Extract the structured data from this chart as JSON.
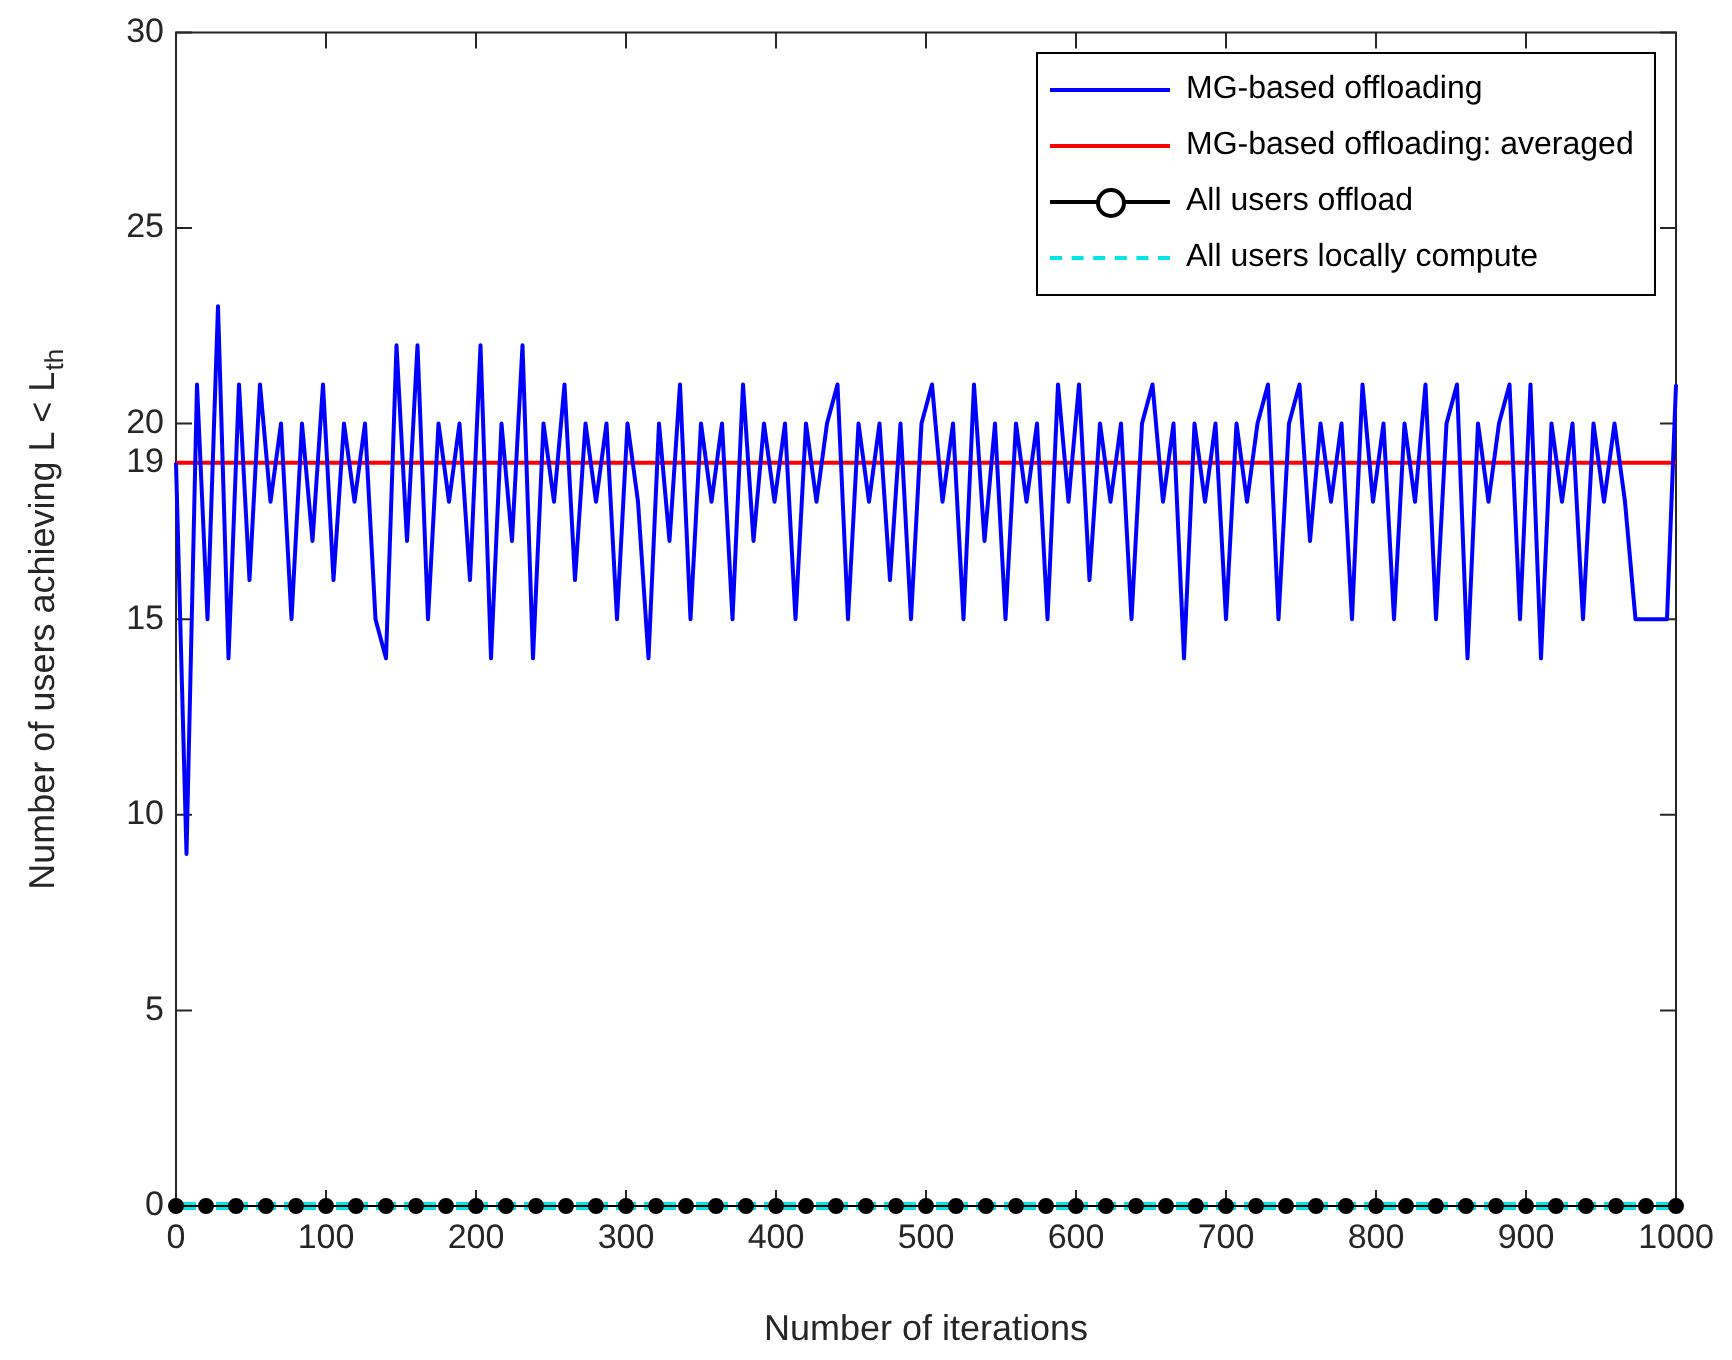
{
  "chart_data": {
    "type": "line",
    "xlabel": "Number of iterations",
    "ylabel": "Number of users achieving L < L$_{th}$",
    "xlim": [
      0,
      1000
    ],
    "xticks": [
      0,
      100,
      200,
      300,
      400,
      500,
      600,
      700,
      800,
      900,
      1000
    ],
    "ylim": [
      0,
      30
    ],
    "yticks": [
      0,
      5,
      10,
      15,
      19,
      20,
      25,
      30
    ],
    "legend": "top right",
    "grid": false,
    "series": [
      {
        "name": "MG-based offloading",
        "color": "#0000ff",
        "marker": "none",
        "line_style": "solid",
        "x": [
          0,
          7,
          14,
          21,
          28,
          35,
          42,
          49,
          56,
          63,
          70,
          77,
          84,
          91,
          98,
          105,
          112,
          119,
          126,
          133,
          140,
          147,
          154,
          161,
          168,
          175,
          182,
          189,
          196,
          203,
          210,
          217,
          224,
          231,
          238,
          245,
          252,
          259,
          266,
          273,
          280,
          287,
          294,
          301,
          308,
          315,
          322,
          329,
          336,
          343,
          350,
          357,
          364,
          371,
          378,
          385,
          392,
          399,
          406,
          413,
          420,
          427,
          434,
          441,
          448,
          455,
          462,
          469,
          476,
          483,
          490,
          497,
          504,
          511,
          518,
          525,
          532,
          539,
          546,
          553,
          560,
          567,
          574,
          581,
          588,
          595,
          602,
          609,
          616,
          623,
          630,
          637,
          644,
          651,
          658,
          665,
          672,
          679,
          686,
          693,
          700,
          707,
          714,
          721,
          728,
          735,
          742,
          749,
          756,
          763,
          770,
          777,
          784,
          791,
          798,
          805,
          812,
          819,
          826,
          833,
          840,
          847,
          854,
          861,
          868,
          875,
          882,
          889,
          896,
          903,
          910,
          917,
          924,
          931,
          938,
          945,
          952,
          959,
          966,
          973,
          980,
          987,
          994,
          1000
        ],
        "values": [
          19,
          9,
          21,
          15,
          23,
          14,
          21,
          16,
          21,
          18,
          20,
          15,
          20,
          17,
          21,
          16,
          20,
          18,
          20,
          15,
          14,
          22,
          17,
          22,
          15,
          20,
          18,
          20,
          16,
          22,
          14,
          20,
          17,
          22,
          14,
          20,
          18,
          21,
          16,
          20,
          18,
          20,
          15,
          20,
          18,
          14,
          20,
          17,
          21,
          15,
          20,
          18,
          20,
          15,
          21,
          17,
          20,
          18,
          20,
          15,
          20,
          18,
          20,
          21,
          15,
          20,
          18,
          20,
          16,
          20,
          15,
          20,
          21,
          18,
          20,
          15,
          21,
          17,
          20,
          15,
          20,
          18,
          20,
          15,
          21,
          18,
          21,
          16,
          20,
          18,
          20,
          15,
          20,
          21,
          18,
          20,
          14,
          20,
          18,
          20,
          15,
          20,
          18,
          20,
          21,
          15,
          20,
          21,
          17,
          20,
          18,
          20,
          15,
          21,
          18,
          20,
          15,
          20,
          18,
          21,
          15,
          20,
          21,
          14,
          20,
          18,
          20,
          21,
          15,
          21,
          14,
          20,
          18,
          20,
          15,
          20,
          18,
          20,
          18,
          15,
          15,
          15,
          15,
          21
        ]
      },
      {
        "name": "MG-based offloading: averaged",
        "color": "#ff0000",
        "marker": "none",
        "line_style": "solid",
        "x": [
          0,
          1000
        ],
        "values": [
          19,
          19
        ]
      },
      {
        "name": "All users offload",
        "color": "#000000",
        "marker": "circle",
        "line_style": "solid",
        "x": [
          0,
          20,
          40,
          60,
          80,
          100,
          120,
          140,
          160,
          180,
          200,
          220,
          240,
          260,
          280,
          300,
          320,
          340,
          360,
          380,
          400,
          420,
          440,
          460,
          480,
          500,
          520,
          540,
          560,
          580,
          600,
          620,
          640,
          660,
          680,
          700,
          720,
          740,
          760,
          780,
          800,
          820,
          840,
          860,
          880,
          900,
          920,
          940,
          960,
          980,
          1000
        ],
        "values": [
          0,
          0,
          0,
          0,
          0,
          0,
          0,
          0,
          0,
          0,
          0,
          0,
          0,
          0,
          0,
          0,
          0,
          0,
          0,
          0,
          0,
          0,
          0,
          0,
          0,
          0,
          0,
          0,
          0,
          0,
          0,
          0,
          0,
          0,
          0,
          0,
          0,
          0,
          0,
          0,
          0,
          0,
          0,
          0,
          0,
          0,
          0,
          0,
          0,
          0,
          0
        ]
      },
      {
        "name": "All users locally compute",
        "color": "#00e5e5",
        "marker": "none",
        "line_style": "dashed",
        "x": [
          0,
          1000
        ],
        "values": [
          0,
          0
        ]
      }
    ]
  }
}
